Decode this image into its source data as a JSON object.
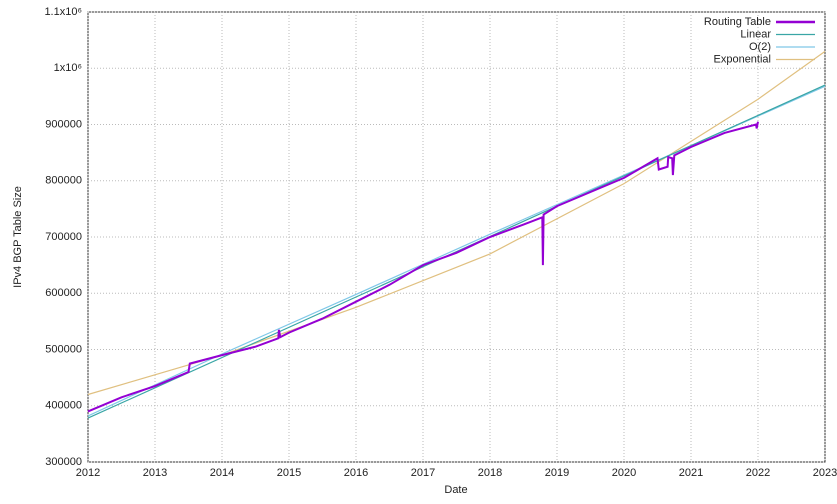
{
  "chart_data": {
    "type": "line",
    "x_label": "Date",
    "y_label": "IPv4 BGP Table Size",
    "xlim": [
      2012,
      2023
    ],
    "xticks": [
      2012,
      2013,
      2014,
      2015,
      2016,
      2017,
      2018,
      2019,
      2020,
      2021,
      2022,
      2023
    ],
    "ylim": [
      300000,
      1100000
    ],
    "yticks": [
      300000,
      400000,
      500000,
      600000,
      700000,
      800000,
      900000,
      {
        "value": 1000000,
        "label": "1x10⁶"
      },
      {
        "value": 1100000,
        "label": "1.1x10⁶"
      }
    ],
    "grid": true,
    "legend": "top-right",
    "series": [
      {
        "name": "Routing Table",
        "color": "#9400d3",
        "x": [
          2012.0,
          2012.5,
          2013.0,
          2013.5,
          2013.52,
          2014.0,
          2014.5,
          2014.84,
          2014.85,
          2014.87,
          2015.0,
          2015.5,
          2016.0,
          2016.5,
          2017.0,
          2017.5,
          2018.0,
          2018.5,
          2018.78,
          2018.79,
          2018.8,
          2019.0,
          2019.5,
          2020.0,
          2020.5,
          2020.52,
          2020.65,
          2020.66,
          2020.72,
          2020.73,
          2020.75,
          2021.0,
          2021.5,
          2021.97,
          2021.98,
          2022.0
        ],
        "values": [
          390000,
          415000,
          435000,
          460000,
          475000,
          490000,
          505000,
          520000,
          535000,
          522000,
          530000,
          555000,
          585000,
          615000,
          650000,
          672000,
          700000,
          722000,
          735000,
          650000,
          740000,
          755000,
          780000,
          805000,
          840000,
          820000,
          825000,
          842000,
          840000,
          810000,
          845000,
          860000,
          885000,
          900000,
          893000,
          905000
        ]
      },
      {
        "name": "Linear",
        "color": "#3aa6a6",
        "x": [
          2012,
          2023
        ],
        "values": [
          378000,
          970000
        ]
      },
      {
        "name": "O(2)",
        "color": "#7fc8e8",
        "x": [
          2012,
          2014,
          2016,
          2018,
          2020,
          2022,
          2023
        ],
        "values": [
          382000,
          492000,
          598000,
          705000,
          810000,
          915000,
          968000
        ]
      },
      {
        "name": "Exponential",
        "color": "#e0c080",
        "x": [
          2012,
          2014,
          2016,
          2018,
          2020,
          2022,
          2023
        ],
        "values": [
          420000,
          490000,
          575000,
          670000,
          795000,
          945000,
          1030000
        ]
      }
    ]
  }
}
